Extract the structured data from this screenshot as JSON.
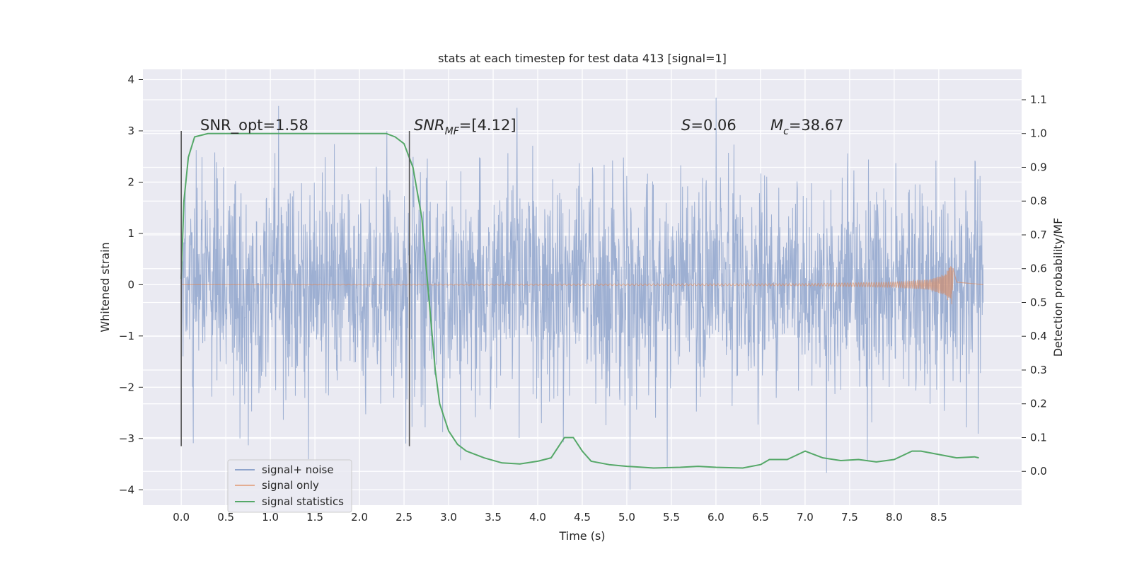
{
  "chart_data": {
    "type": "line",
    "title": "stats at each timestep for test data 413 [signal=1]",
    "xlabel": "Time (s)",
    "ylabel": "Whitened strain",
    "y2label": "Detection probability/MF",
    "xlim": [
      -0.43,
      9.43
    ],
    "ylim": [
      -4.3,
      4.2
    ],
    "y2lim": [
      -0.1,
      1.19
    ],
    "xticks": [
      "0.0",
      "0.5",
      "1.0",
      "1.5",
      "2.0",
      "2.5",
      "3.0",
      "3.5",
      "4.0",
      "4.5",
      "5.0",
      "5.5",
      "6.0",
      "6.5",
      "7.0",
      "7.5",
      "8.0",
      "8.5"
    ],
    "yticks": [
      "4",
      "3",
      "2",
      "1",
      "0",
      "−1",
      "−2",
      "−3",
      "−4"
    ],
    "y2ticks": [
      "1.1",
      "1.0",
      "0.9",
      "0.8",
      "0.7",
      "0.6",
      "0.5",
      "0.4",
      "0.3",
      "0.2",
      "0.1",
      "0.0"
    ],
    "grid": true,
    "legend_position": "lower-left",
    "annotations": {
      "snr_opt": "SNR_opt=1.58",
      "snr_mf_sym": "SNR",
      "snr_mf_sub": "MF",
      "snr_mf_val": "=[4.12]",
      "s_sym": "S",
      "s_val": "=0.06",
      "mc_sym": "M",
      "mc_sub": "c",
      "mc_val": "=38.67"
    },
    "vlines": [
      0.0,
      2.56
    ],
    "series": [
      {
        "name": "signal+ noise",
        "color": "#8fa4cc",
        "description": "whitened noisy strain, approx. Gaussian with sigma ~1, spanning t = 0.0 to 9.0 s",
        "t_range": [
          0.0,
          9.0
        ],
        "envelope": {
          "min": -4.0,
          "max": 3.8
        }
      },
      {
        "name": "signal only",
        "color": "#dd8452",
        "description": "chirp signal, near zero until merger near t = 8.65 s",
        "x": [
          0.0,
          7.0,
          8.0,
          8.4,
          8.55,
          8.6,
          8.65,
          8.7,
          9.0
        ],
        "amplitude": [
          0.0,
          0.02,
          0.05,
          0.1,
          0.2,
          0.3,
          0.4,
          0.05,
          0.0
        ]
      },
      {
        "name": "signal statistics",
        "color": "#55a868",
        "x": [
          0.0,
          0.03,
          0.08,
          0.15,
          0.3,
          0.6,
          1.0,
          1.5,
          2.0,
          2.3,
          2.4,
          2.5,
          2.6,
          2.7,
          2.8,
          2.85,
          2.9,
          3.0,
          3.1,
          3.2,
          3.4,
          3.6,
          3.8,
          4.0,
          4.15,
          4.3,
          4.4,
          4.5,
          4.6,
          4.8,
          5.0,
          5.3,
          5.6,
          5.8,
          6.0,
          6.3,
          6.5,
          6.6,
          6.8,
          7.0,
          7.2,
          7.4,
          7.6,
          7.8,
          8.0,
          8.2,
          8.3,
          8.5,
          8.7,
          8.9,
          8.95
        ],
        "y": [
          0.57,
          0.8,
          0.93,
          0.99,
          1.0,
          1.0,
          1.0,
          1.0,
          1.0,
          1.0,
          0.99,
          0.97,
          0.9,
          0.75,
          0.45,
          0.3,
          0.2,
          0.12,
          0.08,
          0.06,
          0.04,
          0.025,
          0.022,
          0.03,
          0.04,
          0.1,
          0.1,
          0.06,
          0.03,
          0.02,
          0.015,
          0.01,
          0.012,
          0.015,
          0.012,
          0.01,
          0.02,
          0.035,
          0.035,
          0.06,
          0.04,
          0.032,
          0.035,
          0.028,
          0.035,
          0.06,
          0.06,
          0.05,
          0.04,
          0.043,
          0.04
        ]
      }
    ]
  }
}
